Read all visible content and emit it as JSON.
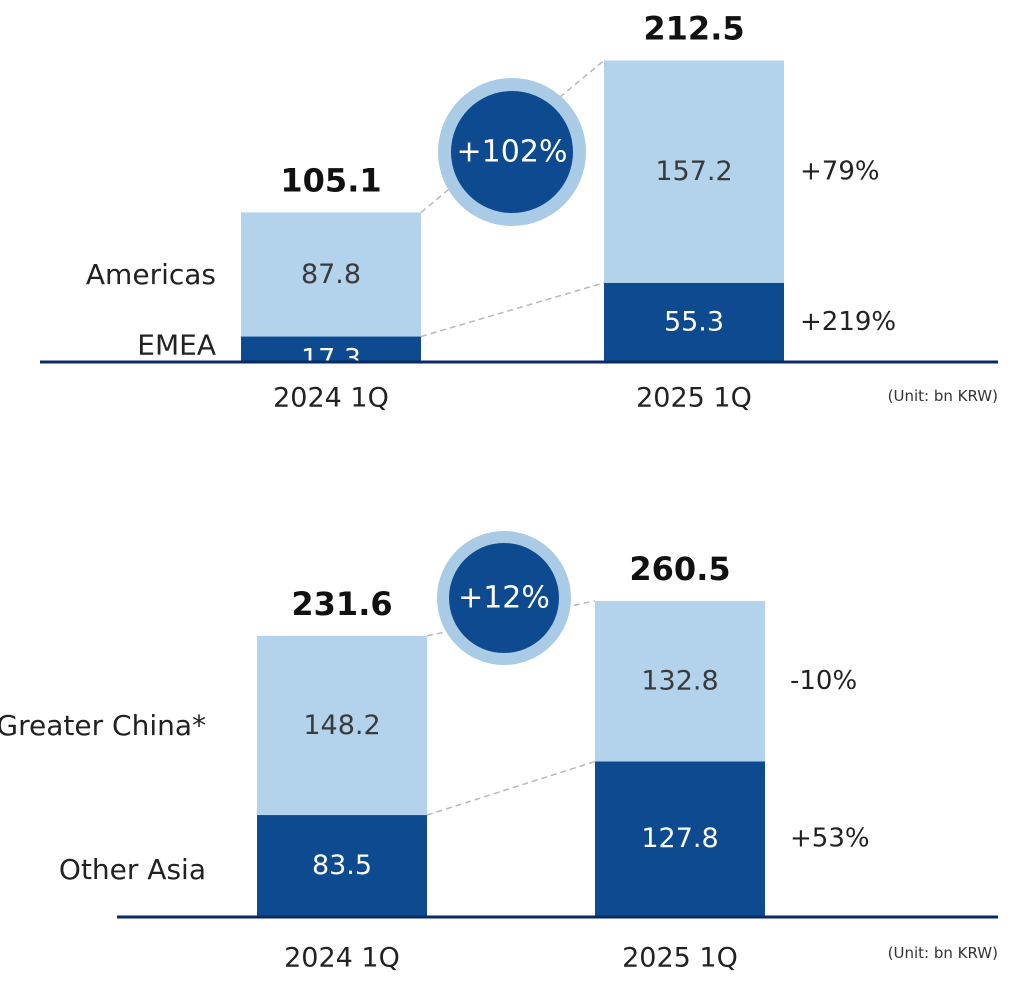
{
  "colors": {
    "dark": "#0d4a8f",
    "light": "#b3d3ec",
    "circle_outer": "#a9cbe6",
    "axis": "#0a2a66",
    "text": "#1a1a1a",
    "white": "#ffffff",
    "connector": "#b8b8b8"
  },
  "chart_data": [
    {
      "type": "bar",
      "stacked": true,
      "categories": [
        "2024 1Q",
        "2025 1Q"
      ],
      "series": [
        {
          "name": "EMEA",
          "values": [
            17.3,
            55.3
          ],
          "labels": [
            "17.3",
            "55.3"
          ],
          "color": "dark"
        },
        {
          "name": "Americas",
          "values": [
            87.8,
            157.2
          ],
          "labels": [
            "87.8",
            "157.2"
          ],
          "color": "light"
        }
      ],
      "totals": [
        "105.1",
        "212.5"
      ],
      "growth_total": "+102%",
      "growth_by_series": [
        "+219%",
        "+79%"
      ],
      "unit": "(Unit: bn KRW)",
      "xlabel": "",
      "ylabel": ""
    },
    {
      "type": "bar",
      "stacked": true,
      "categories": [
        "2024 1Q",
        "2025 1Q"
      ],
      "series": [
        {
          "name": "Other Asia",
          "values": [
            83.5,
            127.8
          ],
          "labels": [
            "83.5",
            "127.8"
          ],
          "color": "dark"
        },
        {
          "name": "Greater China*",
          "values": [
            148.2,
            132.8
          ],
          "labels": [
            "148.2",
            "132.8"
          ],
          "color": "light"
        }
      ],
      "totals": [
        "231.6",
        "260.5"
      ],
      "growth_total": "+12%",
      "growth_by_series": [
        "+53%",
        "-10%"
      ],
      "unit": "(Unit: bn KRW)",
      "xlabel": "",
      "ylabel": ""
    }
  ]
}
